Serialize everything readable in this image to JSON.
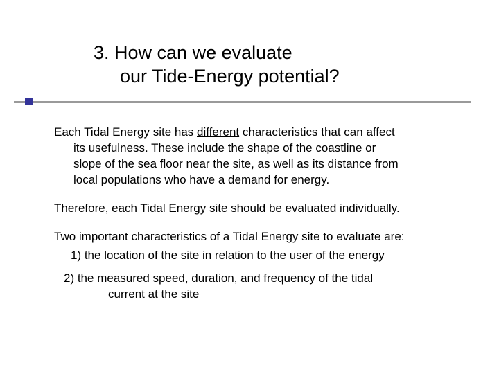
{
  "slide": {
    "title_line1": "3.  How can we evaluate",
    "title_line2": "our Tide-Energy potential?",
    "title_fontsize_pt": 27,
    "title_color": "#000000",
    "accent_color": "#333399",
    "rule_color": "#9a9a9a",
    "background_color": "#ffffff",
    "body_fontsize_pt": 17,
    "body_color": "#000000",
    "para1_pre": "Each Tidal Energy site has ",
    "para1_u1": "different",
    "para1_post1": " characteristics that can affect",
    "para1_line2": "its usefulness.   These include the shape of the coastline or",
    "para1_line3": "slope of the sea floor near the site, as well as its distance from",
    "para1_line4": "local populations who have a demand for energy.",
    "para2_pre": "Therefore, each Tidal Energy site should be evaluated ",
    "para2_u": "individually",
    "para2_post": ".",
    "para3": "Two important characteristics of a Tidal Energy site to evaluate are:",
    "item1_pre": "1)  the ",
    "item1_u": "location",
    "item1_post": " of the site in relation to the user of the energy",
    "item2_pre": "2)  the ",
    "item2_u": "measured",
    "item2_post": " speed, duration, and frequency of the tidal",
    "item2_line2": "current at the site"
  }
}
